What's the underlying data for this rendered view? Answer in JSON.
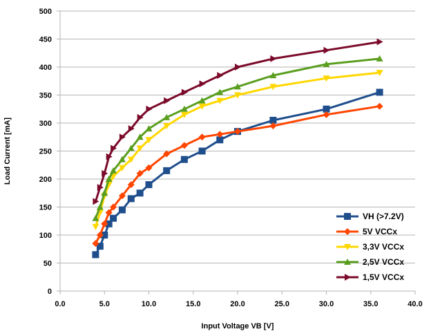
{
  "chart_data": {
    "type": "line",
    "xlabel": "Input Voltage VB [V]",
    "ylabel": "Load Current [mA]",
    "xlim": [
      0,
      40
    ],
    "ylim": [
      0,
      500
    ],
    "xticks": [
      0,
      5,
      10,
      15,
      20,
      25,
      30,
      35,
      40
    ],
    "xtick_labels": [
      "0.0",
      "5.0",
      "10.0",
      "15.0",
      "20.0",
      "25.0",
      "30.0",
      "35.0",
      "40.0"
    ],
    "yticks": [
      0,
      50,
      100,
      150,
      200,
      250,
      300,
      350,
      400,
      450,
      500
    ],
    "ytick_labels": [
      "0",
      "50",
      "100",
      "150",
      "200",
      "250",
      "300",
      "350",
      "400",
      "450",
      "500"
    ],
    "grid": "horizontal",
    "legend_position": "bottom-right",
    "series": [
      {
        "name": "VH (>7.2V)",
        "color": "#1f4e8c",
        "marker": "square",
        "x": [
          4,
          4.5,
          5,
          5.5,
          6,
          7,
          8,
          9,
          10,
          12,
          14,
          16,
          18,
          20,
          24,
          30,
          36
        ],
        "y": [
          65,
          80,
          100,
          120,
          130,
          145,
          165,
          175,
          190,
          215,
          235,
          250,
          270,
          285,
          305,
          325,
          355
        ]
      },
      {
        "name": "5V VCCx",
        "color": "#ff4500",
        "marker": "diamond",
        "x": [
          4,
          4.5,
          5,
          5.5,
          6,
          7,
          8,
          9,
          10,
          12,
          14,
          16,
          18,
          20,
          24,
          30,
          36
        ],
        "y": [
          85,
          100,
          120,
          140,
          150,
          170,
          190,
          210,
          220,
          245,
          260,
          275,
          280,
          285,
          295,
          315,
          330
        ]
      },
      {
        "name": "3,3V VCCx",
        "color": "#ffd700",
        "marker": "triangle-down",
        "x": [
          4,
          4.5,
          5,
          5.5,
          6,
          7,
          8,
          9,
          10,
          12,
          14,
          16,
          18,
          20,
          24,
          30,
          36
        ],
        "y": [
          115,
          140,
          170,
          190,
          205,
          220,
          235,
          255,
          270,
          295,
          315,
          330,
          340,
          350,
          365,
          380,
          390
        ]
      },
      {
        "name": "2,5V VCCx",
        "color": "#5a9e1f",
        "marker": "triangle-up",
        "x": [
          4,
          4.5,
          5,
          5.5,
          6,
          7,
          8,
          9,
          10,
          12,
          14,
          16,
          18,
          20,
          24,
          30,
          36
        ],
        "y": [
          130,
          150,
          175,
          200,
          215,
          235,
          255,
          275,
          290,
          310,
          325,
          340,
          355,
          365,
          385,
          405,
          415
        ]
      },
      {
        "name": "1,5V VCCx",
        "color": "#7b0a2a",
        "marker": "triangle-right",
        "x": [
          4,
          4.5,
          5,
          5.5,
          6,
          7,
          8,
          9,
          10,
          12,
          14,
          16,
          18,
          20,
          24,
          30,
          36
        ],
        "y": [
          160,
          185,
          210,
          240,
          255,
          275,
          290,
          310,
          325,
          340,
          355,
          370,
          385,
          400,
          415,
          430,
          445
        ]
      }
    ]
  }
}
